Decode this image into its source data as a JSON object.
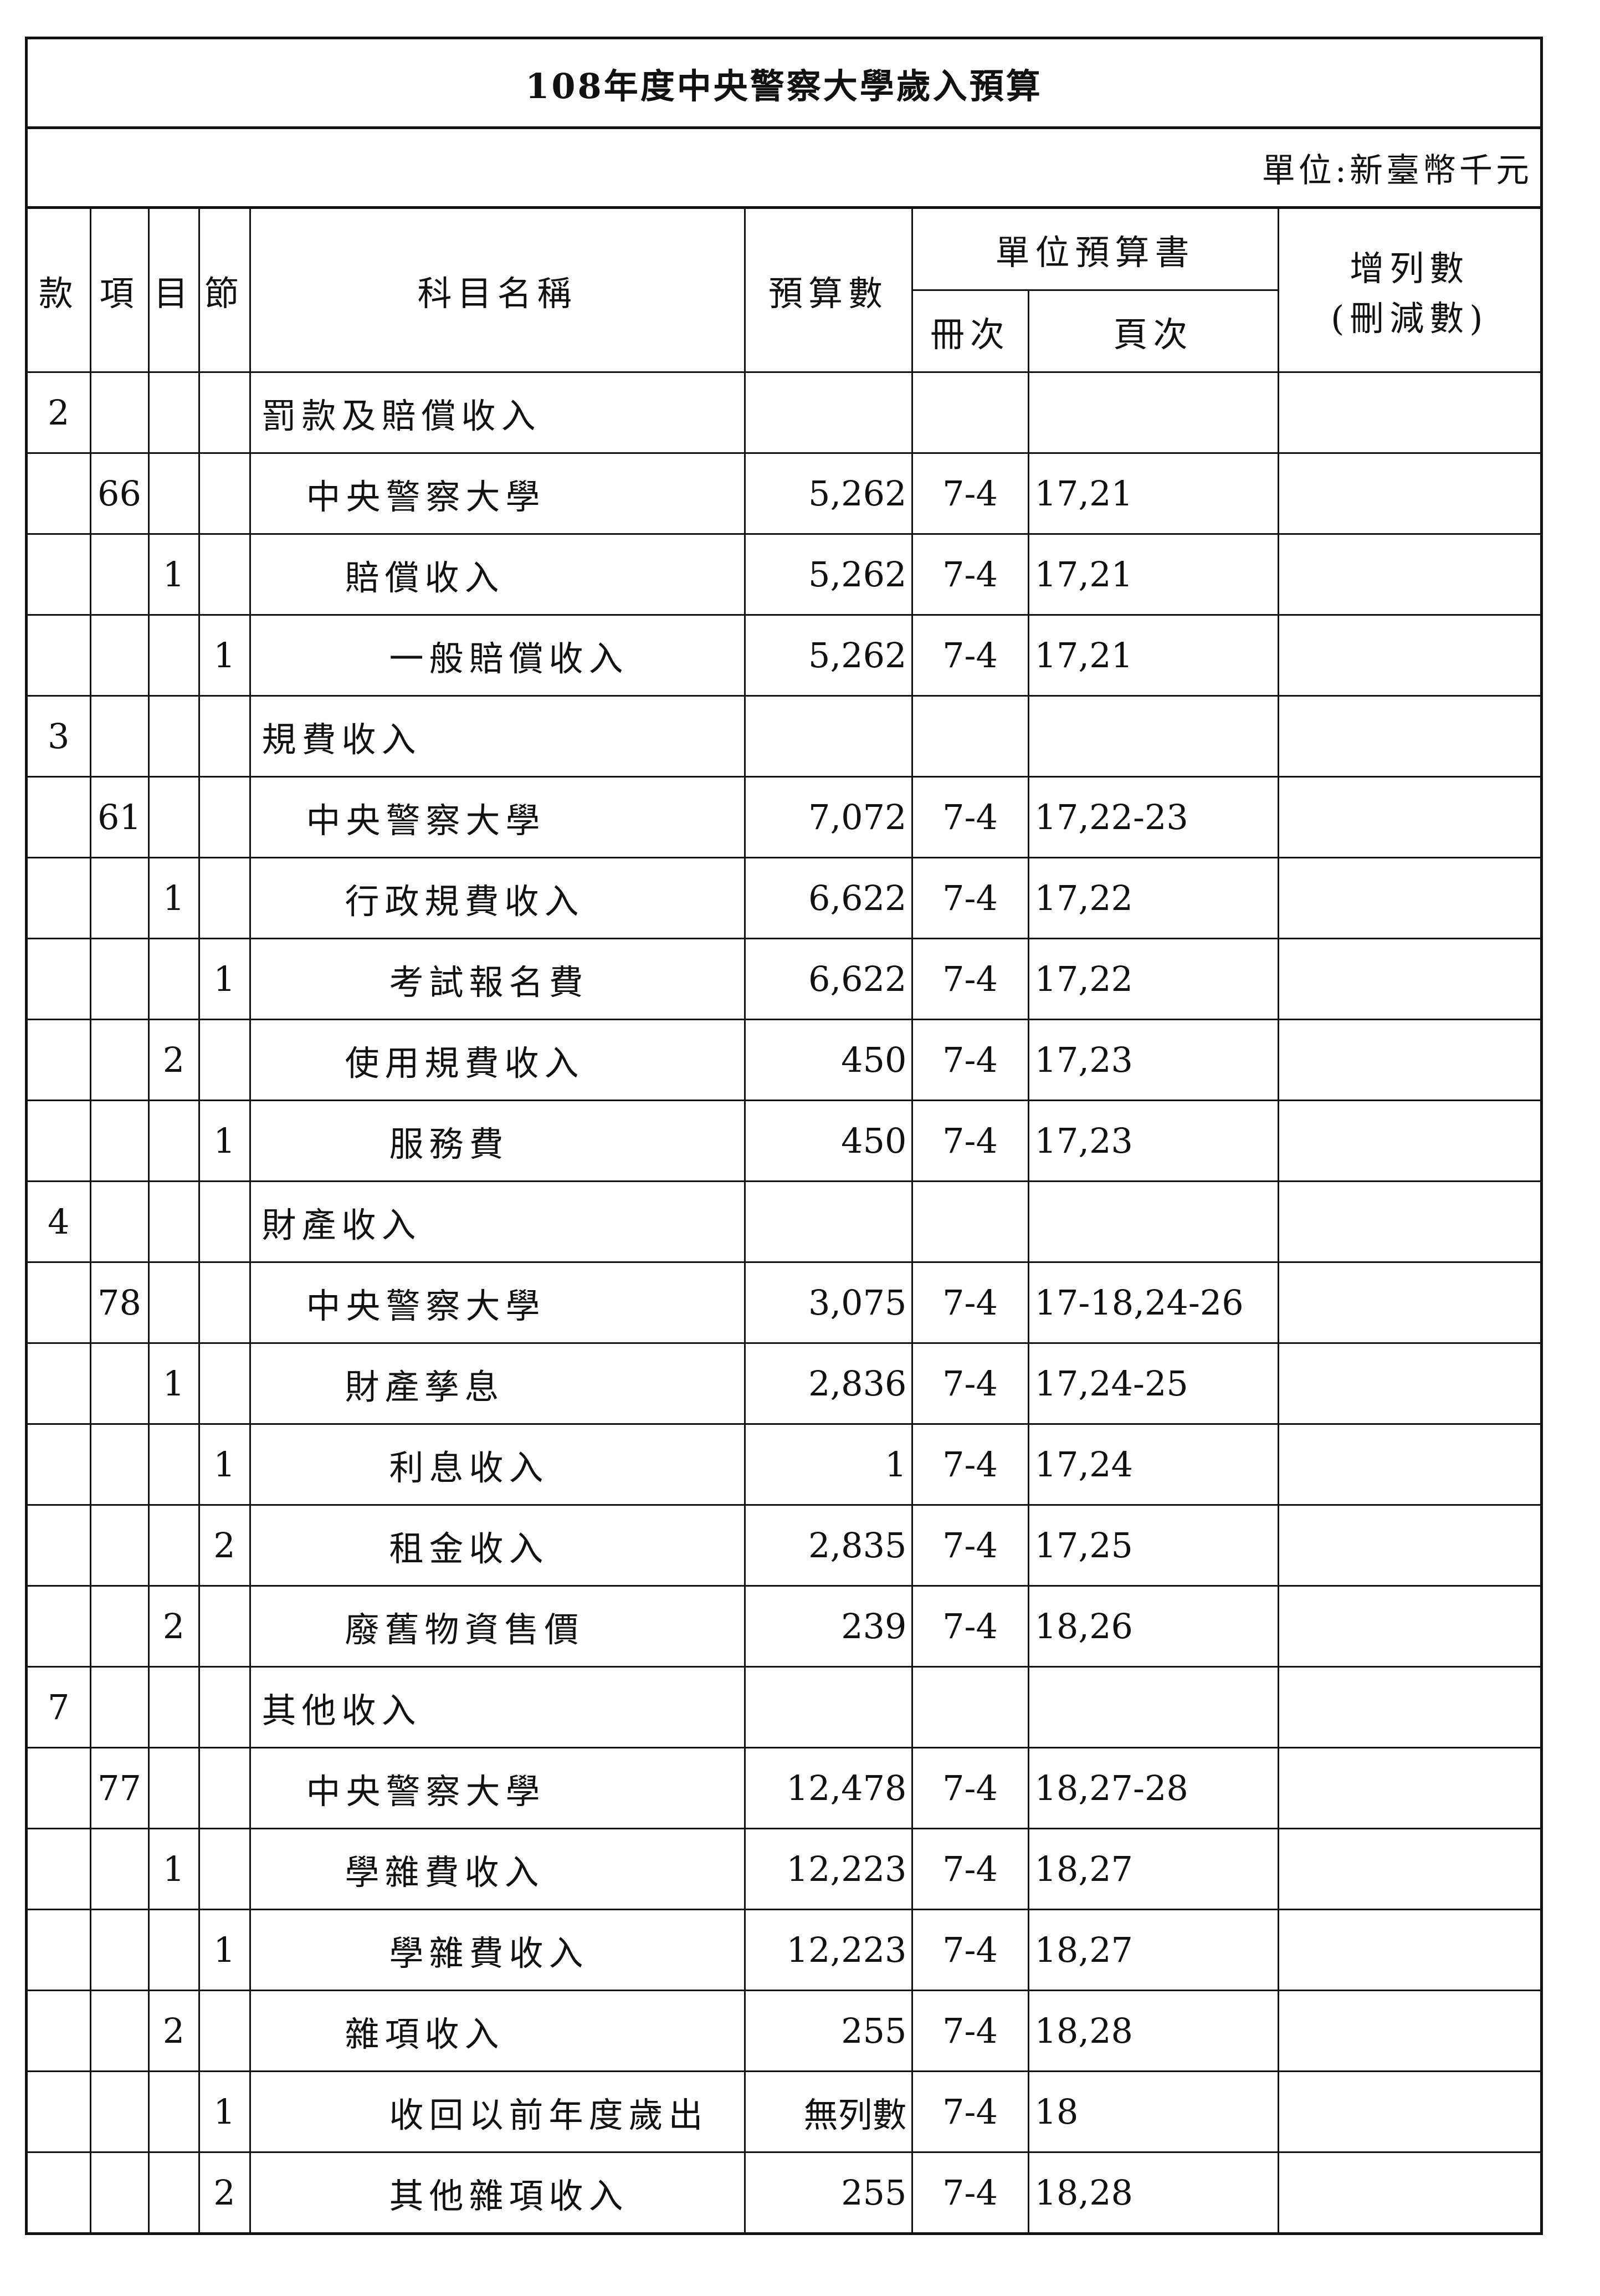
{
  "title": "108年度中央警察大學歲入預算",
  "unit": "單位:新臺幣千元",
  "headers": {
    "kuan": "款",
    "xiang": "項",
    "mu": "目",
    "jie": "節",
    "name": "科目名稱",
    "amount": "預算數",
    "book": "單位預算書",
    "volume": "冊次",
    "pages": "頁次",
    "change": "增列數",
    "change_sub": "(刪減數)"
  },
  "rows": [
    {
      "kuan": "2",
      "xiang": "",
      "mu": "",
      "jie": "",
      "name": "罰款及賠償收入",
      "amount": "",
      "volume": "",
      "pages": "",
      "change": ""
    },
    {
      "kuan": "",
      "xiang": "66",
      "mu": "",
      "jie": "",
      "name": "中央警察大學",
      "amount": "5,262",
      "volume": "7-4",
      "pages": "17,21",
      "change": ""
    },
    {
      "kuan": "",
      "xiang": "",
      "mu": "1",
      "jie": "",
      "name": "賠償收入",
      "amount": "5,262",
      "volume": "7-4",
      "pages": "17,21",
      "change": ""
    },
    {
      "kuan": "",
      "xiang": "",
      "mu": "",
      "jie": "1",
      "name": "一般賠償收入",
      "amount": "5,262",
      "volume": "7-4",
      "pages": "17,21",
      "change": ""
    },
    {
      "kuan": "3",
      "xiang": "",
      "mu": "",
      "jie": "",
      "name": "規費收入",
      "amount": "",
      "volume": "",
      "pages": "",
      "change": ""
    },
    {
      "kuan": "",
      "xiang": "61",
      "mu": "",
      "jie": "",
      "name": "中央警察大學",
      "amount": "7,072",
      "volume": "7-4",
      "pages": "17,22-23",
      "change": ""
    },
    {
      "kuan": "",
      "xiang": "",
      "mu": "1",
      "jie": "",
      "name": "行政規費收入",
      "amount": "6,622",
      "volume": "7-4",
      "pages": "17,22",
      "change": ""
    },
    {
      "kuan": "",
      "xiang": "",
      "mu": "",
      "jie": "1",
      "name": "考試報名費",
      "amount": "6,622",
      "volume": "7-4",
      "pages": "17,22",
      "change": ""
    },
    {
      "kuan": "",
      "xiang": "",
      "mu": "2",
      "jie": "",
      "name": "使用規費收入",
      "amount": "450",
      "volume": "7-4",
      "pages": "17,23",
      "change": ""
    },
    {
      "kuan": "",
      "xiang": "",
      "mu": "",
      "jie": "1",
      "name": "服務費",
      "amount": "450",
      "volume": "7-4",
      "pages": "17,23",
      "change": ""
    },
    {
      "kuan": "4",
      "xiang": "",
      "mu": "",
      "jie": "",
      "name": "財產收入",
      "amount": "",
      "volume": "",
      "pages": "",
      "change": ""
    },
    {
      "kuan": "",
      "xiang": "78",
      "mu": "",
      "jie": "",
      "name": "中央警察大學",
      "amount": "3,075",
      "volume": "7-4",
      "pages": "17-18,24-26",
      "change": ""
    },
    {
      "kuan": "",
      "xiang": "",
      "mu": "1",
      "jie": "",
      "name": "財產孳息",
      "amount": "2,836",
      "volume": "7-4",
      "pages": "17,24-25",
      "change": ""
    },
    {
      "kuan": "",
      "xiang": "",
      "mu": "",
      "jie": "1",
      "name": "利息收入",
      "amount": "1",
      "volume": "7-4",
      "pages": "17,24",
      "change": ""
    },
    {
      "kuan": "",
      "xiang": "",
      "mu": "",
      "jie": "2",
      "name": "租金收入",
      "amount": "2,835",
      "volume": "7-4",
      "pages": "17,25",
      "change": ""
    },
    {
      "kuan": "",
      "xiang": "",
      "mu": "2",
      "jie": "",
      "name": "廢舊物資售價",
      "amount": "239",
      "volume": "7-4",
      "pages": "18,26",
      "change": ""
    },
    {
      "kuan": "7",
      "xiang": "",
      "mu": "",
      "jie": "",
      "name": "其他收入",
      "amount": "",
      "volume": "",
      "pages": "",
      "change": ""
    },
    {
      "kuan": "",
      "xiang": "77",
      "mu": "",
      "jie": "",
      "name": "中央警察大學",
      "amount": "12,478",
      "volume": "7-4",
      "pages": "18,27-28",
      "change": ""
    },
    {
      "kuan": "",
      "xiang": "",
      "mu": "1",
      "jie": "",
      "name": "學雜費收入",
      "amount": "12,223",
      "volume": "7-4",
      "pages": "18,27",
      "change": ""
    },
    {
      "kuan": "",
      "xiang": "",
      "mu": "",
      "jie": "1",
      "name": "學雜費收入",
      "amount": "12,223",
      "volume": "7-4",
      "pages": "18,27",
      "change": ""
    },
    {
      "kuan": "",
      "xiang": "",
      "mu": "2",
      "jie": "",
      "name": "雜項收入",
      "amount": "255",
      "volume": "7-4",
      "pages": "18,28",
      "change": ""
    },
    {
      "kuan": "",
      "xiang": "",
      "mu": "",
      "jie": "1",
      "name": "收回以前年度歲出",
      "amount": "無列數",
      "volume": "7-4",
      "pages": "18",
      "change": ""
    },
    {
      "kuan": "",
      "xiang": "",
      "mu": "",
      "jie": "2",
      "name": "其他雜項收入",
      "amount": "255",
      "volume": "7-4",
      "pages": "18,28",
      "change": ""
    }
  ]
}
